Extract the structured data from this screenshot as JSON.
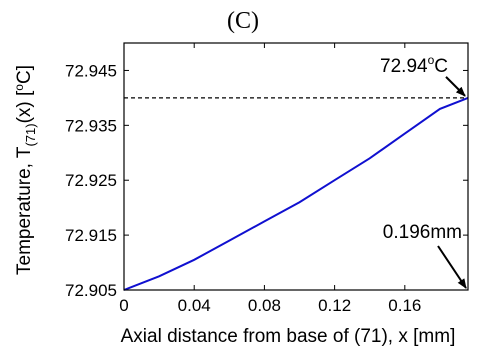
{
  "chart_data": {
    "type": "line",
    "panel_label": "(C)",
    "xlabel": "Axial distance from base of (71), x [mm]",
    "ylabel": {
      "prefix": "Temperature, T",
      "subscript": "(71)",
      "mid": "(x) [",
      "superscript": "o",
      "suffix": "C]"
    },
    "xlim": [
      0,
      0.196
    ],
    "ylim": [
      72.905,
      72.95
    ],
    "x_ticks": [
      0,
      0.04,
      0.08,
      0.12,
      0.16
    ],
    "x_tick_labels": [
      "0",
      "0.04",
      "0.08",
      "0.12",
      "0.16"
    ],
    "y_ticks": [
      72.905,
      72.915,
      72.925,
      72.935,
      72.945
    ],
    "y_tick_labels": [
      "72.905",
      "72.915",
      "72.925",
      "72.935",
      "72.945"
    ],
    "grid": false,
    "series": [
      {
        "color": "#1010d0",
        "x": [
          0,
          0.02,
          0.04,
          0.06,
          0.08,
          0.1,
          0.12,
          0.14,
          0.16,
          0.18,
          0.196
        ],
        "values": [
          72.905,
          72.9075,
          72.9105,
          72.914,
          72.9175,
          72.921,
          72.925,
          72.929,
          72.9335,
          72.938,
          72.94
        ]
      }
    ],
    "reference_line": {
      "y": 72.94,
      "style": "dashed"
    },
    "annotations": [
      {
        "id": "max-temp",
        "text": {
          "value": "72.94",
          "superscript": "o",
          "unit": "C"
        },
        "point": [
          0.196,
          72.94
        ]
      },
      {
        "id": "length",
        "text": {
          "value": "0.196mm"
        },
        "point": [
          0.196,
          72.905
        ]
      }
    ]
  }
}
